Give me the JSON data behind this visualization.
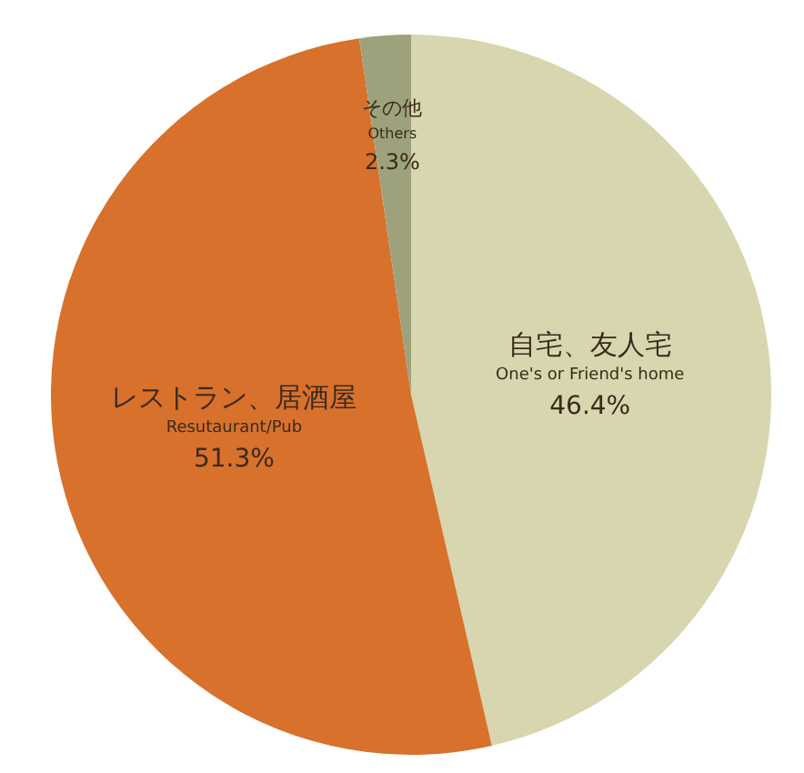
{
  "chart_data": {
    "type": "pie",
    "categories": [
      "自宅、友人宅\nOne's or Friend's home",
      "レストラン、居酒屋\nResutaurant/Pub",
      "その他\nOthers"
    ],
    "values": [
      46.4,
      51.3,
      2.3
    ],
    "colors": [
      "#d7d6ae",
      "#d8712c",
      "#9ea27c"
    ],
    "value_labels": [
      "46.4%",
      "51.3%",
      "2.3%"
    ]
  }
}
